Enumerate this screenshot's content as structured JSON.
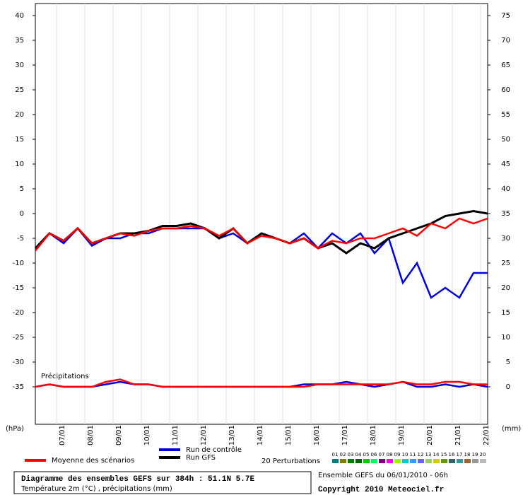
{
  "chart_data": {
    "type": "line",
    "title": "Diagramme des ensembles GEFS sur 384h : 51.1N 5.7E",
    "subtitle": "Température 2m (°C) , précipitations (mm)",
    "run_info": "Ensemble GEFS du 06/01/2010 - 06h",
    "copyright": "Copyright 2010 Meteociel.fr",
    "y_label": "(hPa)",
    "y2_label": "(mm)",
    "precip_label": "Précipitations",
    "grid": true,
    "x": [
      0,
      12,
      24,
      36,
      48,
      60,
      72,
      84,
      96,
      108,
      120,
      132,
      144,
      156,
      168,
      180,
      192,
      204,
      216,
      228,
      240,
      252,
      264,
      276,
      288,
      300,
      312,
      324,
      336,
      348,
      360,
      372,
      384
    ],
    "xlim": [
      0,
      384
    ],
    "xticks": [
      {
        "value": 18,
        "label": "07/01"
      },
      {
        "value": 42,
        "label": "08/01"
      },
      {
        "value": 66,
        "label": "09/01"
      },
      {
        "value": 90,
        "label": "10/01"
      },
      {
        "value": 114,
        "label": "11/01"
      },
      {
        "value": 138,
        "label": "12/01"
      },
      {
        "value": 162,
        "label": "13/01"
      },
      {
        "value": 186,
        "label": "14/01"
      },
      {
        "value": 210,
        "label": "15/01"
      },
      {
        "value": 234,
        "label": "16/01"
      },
      {
        "value": 258,
        "label": "17/01"
      },
      {
        "value": 282,
        "label": "18/01"
      },
      {
        "value": 306,
        "label": "19/01"
      },
      {
        "value": 330,
        "label": "20/01"
      },
      {
        "value": 354,
        "label": "21/01"
      },
      {
        "value": 378,
        "label": "22/01"
      }
    ],
    "ylim": [
      -35,
      40
    ],
    "yticks": [
      -35,
      -30,
      -25,
      -20,
      -15,
      -10,
      -5,
      0,
      5,
      10,
      15,
      20,
      25,
      30,
      35,
      40
    ],
    "y2lim": [
      0,
      75
    ],
    "y2ticks": [
      0,
      5,
      10,
      15,
      20,
      25,
      30,
      35,
      40,
      45,
      50,
      55,
      60,
      65,
      70,
      75
    ],
    "series": [
      {
        "name": "Run de contrôle",
        "color": "#0000dd",
        "values": [
          -7.5,
          -4,
          -6,
          -3,
          -6.5,
          -5,
          -5,
          -4,
          -4,
          -3,
          -3,
          -3,
          -3,
          -5,
          -4,
          -6,
          -4,
          -5,
          -6,
          -4,
          -7,
          -4,
          -6,
          -4,
          -8,
          -5,
          -14,
          -10,
          -17,
          -15,
          -17,
          -12,
          -12
        ]
      },
      {
        "name": "Run GFS",
        "color": "#000000",
        "values": [
          -7,
          -4,
          -5.5,
          -3,
          -6,
          -5,
          -4,
          -4,
          -3.5,
          -2.5,
          -2.5,
          -2,
          -3,
          -5,
          -3,
          -6,
          -4,
          -5,
          -6,
          -5,
          -7,
          -6,
          -8,
          -6,
          -7,
          -5,
          -4,
          -3,
          -2,
          -0.5,
          0,
          0.5,
          0
        ]
      },
      {
        "name": "Moyenne des scénarios",
        "color": "#ff0000",
        "values": [
          -7.5,
          -4,
          -5.5,
          -3,
          -6,
          -5,
          -4,
          -4.5,
          -3.5,
          -3,
          -3,
          -2.5,
          -3,
          -4.5,
          -3,
          -6,
          -4.5,
          -5,
          -6,
          -5,
          -7,
          -5.5,
          -6,
          -5,
          -5,
          -4,
          -3,
          -4.5,
          -2,
          -3,
          -1,
          -2,
          -1
        ]
      },
      {
        "axis": "y2",
        "color": "#0000dd",
        "values": [
          0,
          0.5,
          0,
          0,
          0,
          0.5,
          1,
          0.5,
          0.5,
          0,
          0,
          0,
          0,
          0,
          0,
          0,
          0,
          0,
          0,
          0.5,
          0.5,
          0.5,
          1,
          0.5,
          0,
          0.5,
          1,
          0,
          0,
          0.5,
          0,
          0.5,
          0
        ]
      },
      {
        "axis": "y2",
        "color": "#ff0000",
        "values": [
          0,
          0.5,
          0,
          0,
          0,
          1,
          1.5,
          0.5,
          0.5,
          0,
          0,
          0,
          0,
          0,
          0,
          0,
          0,
          0,
          0,
          0,
          0.5,
          0.5,
          0.5,
          0.5,
          0.5,
          0.5,
          1,
          0.5,
          0.5,
          1,
          1,
          0.5,
          0.5
        ]
      }
    ],
    "perturbations": {
      "label": "20 Perturbations",
      "members": [
        {
          "name": "01",
          "color": "#008080"
        },
        {
          "name": "02",
          "color": "#808000"
        },
        {
          "name": "03",
          "color": "#008000"
        },
        {
          "name": "04",
          "color": "#006400"
        },
        {
          "name": "05",
          "color": "#00cc00"
        },
        {
          "name": "06",
          "color": "#00ff66"
        },
        {
          "name": "07",
          "color": "#800080"
        },
        {
          "name": "08",
          "color": "#ff00ff"
        },
        {
          "name": "09",
          "color": "#99ff00"
        },
        {
          "name": "10",
          "color": "#00cccc"
        },
        {
          "name": "11",
          "color": "#3399ff"
        },
        {
          "name": "12",
          "color": "#6666ff"
        },
        {
          "name": "13",
          "color": "#99cc66"
        },
        {
          "name": "14",
          "color": "#cccc00"
        },
        {
          "name": "15",
          "color": "#669900"
        },
        {
          "name": "16",
          "color": "#336666"
        },
        {
          "name": "17",
          "color": "#339999"
        },
        {
          "name": "18",
          "color": "#996633"
        },
        {
          "name": "19",
          "color": "#999999"
        },
        {
          "name": "20",
          "color": "#bbbbbb"
        }
      ]
    }
  }
}
